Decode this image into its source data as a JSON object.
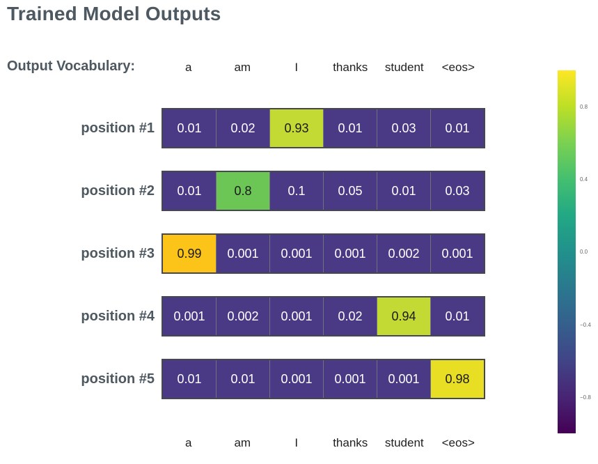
{
  "title": "Trained Model Outputs",
  "vocab": {
    "label": "Output Vocabulary:",
    "items": [
      "a",
      "am",
      "I",
      "thanks",
      "student",
      "<eos>"
    ]
  },
  "grid": {
    "rows": [
      {
        "label": "position #1",
        "values": [
          "0.01",
          "0.02",
          "0.93",
          "0.01",
          "0.03",
          "0.01"
        ],
        "highlight_index": 2,
        "highlight_color": "#c3d934"
      },
      {
        "label": "position #2",
        "values": [
          "0.01",
          "0.8",
          "0.1",
          "0.05",
          "0.01",
          "0.03"
        ],
        "highlight_index": 1,
        "highlight_color": "#6bc655"
      },
      {
        "label": "position #3",
        "values": [
          "0.99",
          "0.001",
          "0.001",
          "0.001",
          "0.002",
          "0.001"
        ],
        "highlight_index": 0,
        "highlight_color": "#fcc419"
      },
      {
        "label": "position #4",
        "values": [
          "0.001",
          "0.002",
          "0.001",
          "0.02",
          "0.94",
          "0.01"
        ],
        "highlight_index": 4,
        "highlight_color": "#c3d934"
      },
      {
        "label": "position #5",
        "values": [
          "0.01",
          "0.01",
          "0.001",
          "0.001",
          "0.001",
          "0.98"
        ],
        "highlight_index": 5,
        "highlight_color": "#e8df24"
      }
    ]
  },
  "colors": {
    "cell_bg": "#4a3a85",
    "cell_text": "#ffffff",
    "highlight_text": "#1a1a1a",
    "row_border": "#47474f",
    "cell_separator": "#71717c",
    "heading_text": "#4d5860",
    "vocab_text": "#1f1f1f",
    "tick_text": "#666666"
  },
  "colorbar": {
    "colormap": "viridis",
    "ticks": [
      "0.8",
      "0.4",
      "0.0",
      "−0.4",
      "−0.8"
    ],
    "gradient_top_to_bottom": [
      "#fde725",
      "#bddf26",
      "#7ad151",
      "#44bf70",
      "#22a884",
      "#21918c",
      "#2a788e",
      "#355f8d",
      "#414487",
      "#482475",
      "#440154"
    ]
  },
  "chart_data": {
    "type": "heatmap",
    "title": "Trained Model Outputs",
    "columns": [
      "a",
      "am",
      "I",
      "thanks",
      "student",
      "<eos>"
    ],
    "rows": [
      "position #1",
      "position #2",
      "position #3",
      "position #4",
      "position #5"
    ],
    "values": [
      [
        0.01,
        0.02,
        0.93,
        0.01,
        0.03,
        0.01
      ],
      [
        0.01,
        0.8,
        0.1,
        0.05,
        0.01,
        0.03
      ],
      [
        0.99,
        0.001,
        0.001,
        0.001,
        0.002,
        0.001
      ],
      [
        0.001,
        0.002,
        0.001,
        0.02,
        0.94,
        0.01
      ],
      [
        0.01,
        0.01,
        0.001,
        0.001,
        0.001,
        0.98
      ]
    ],
    "colormap": "viridis",
    "colorbar_ticks": [
      0.8,
      0.4,
      0.0,
      -0.4,
      -0.8
    ],
    "colorbar_range": [
      -1,
      1
    ],
    "legend_position": "right",
    "grid": false
  }
}
